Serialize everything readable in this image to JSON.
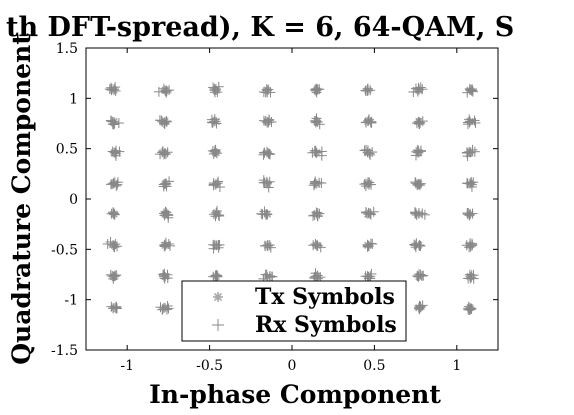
{
  "chart_data": {
    "type": "scatter",
    "title": "th DFT-spread), K = 6, 64-QAM, S",
    "xlabel": "In-phase Component",
    "ylabel": "Quadrature Component",
    "xlim": [
      -1.25,
      1.25
    ],
    "ylim": [
      -1.5,
      1.5
    ],
    "x_ticks": [
      -1,
      -0.5,
      0,
      0.5,
      1
    ],
    "x_tick_labels": [
      "-1",
      "-0.5",
      "0",
      "0.5",
      "1"
    ],
    "y_ticks": [
      -1.5,
      -1,
      -0.5,
      0,
      0.5,
      1,
      1.5
    ],
    "y_tick_labels": [
      "-1.5",
      "-1",
      "-0.5",
      "0",
      "0.5",
      "1",
      "1.5"
    ],
    "grid": false,
    "legend_position": "bottom-center",
    "colors": {
      "tx": "#aaaaaa",
      "rx": "#888888",
      "axis": "#000000"
    },
    "constellation_levels": [
      -1.08,
      -0.77,
      -0.46,
      -0.15,
      0.15,
      0.46,
      0.77,
      1.08
    ],
    "series": [
      {
        "name": "Tx Symbols",
        "marker": "asterisk",
        "rx_spread": 0
      },
      {
        "name": "Rx Symbols",
        "marker": "plus",
        "rx_spread": 0.025,
        "points_per_symbol": 7
      }
    ]
  }
}
